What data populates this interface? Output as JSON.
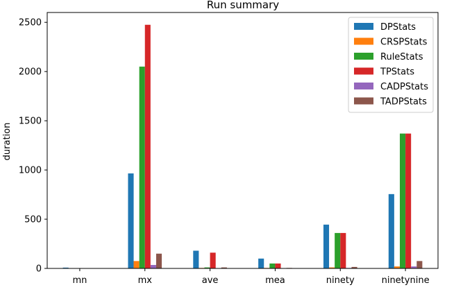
{
  "chart_data": {
    "type": "bar",
    "title": "Run summary",
    "xlabel": "",
    "ylabel": "duration",
    "categories": [
      "mn",
      "mx",
      "ave",
      "mea",
      "ninety",
      "ninetynine"
    ],
    "ylim": [
      0,
      2600
    ],
    "yticks": [
      0,
      500,
      1000,
      1500,
      2000,
      2500
    ],
    "grid": false,
    "legend_position": "top-right",
    "series": [
      {
        "name": "DPStats",
        "color": "#1f77b4",
        "values": [
          8,
          965,
          180,
          100,
          445,
          755
        ]
      },
      {
        "name": "CRSPStats",
        "color": "#ff7f0e",
        "values": [
          1,
          75,
          5,
          5,
          10,
          20
        ]
      },
      {
        "name": "RuleStats",
        "color": "#2ca02c",
        "values": [
          1,
          2050,
          10,
          50,
          360,
          1370
        ]
      },
      {
        "name": "TPStats",
        "color": "#d62728",
        "values": [
          1,
          2475,
          160,
          50,
          360,
          1370
        ]
      },
      {
        "name": "CADPStats",
        "color": "#9467bd",
        "values": [
          1,
          35,
          2,
          2,
          5,
          20
        ]
      },
      {
        "name": "TADPStats",
        "color": "#8c564b",
        "values": [
          1,
          150,
          10,
          5,
          15,
          75
        ]
      }
    ]
  }
}
